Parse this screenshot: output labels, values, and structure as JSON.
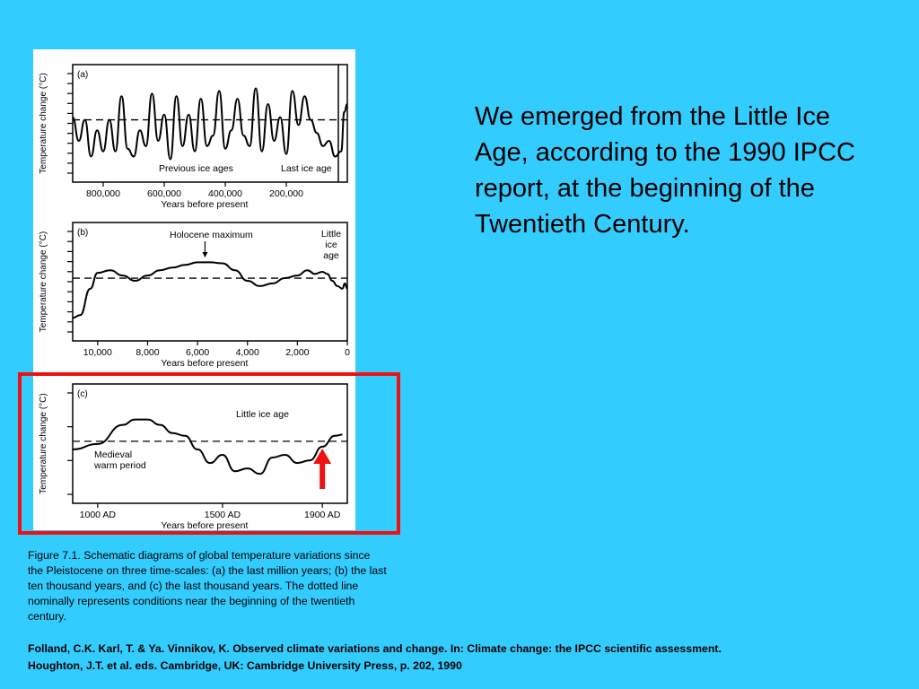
{
  "slide": {
    "background": "#33ccff",
    "highlight_color": "#ee1111",
    "arrow_color": "#ee1111",
    "side_text": "We emerged from the Little Ice Age, according to the 1990 IPCC report, at the beginning of the Twentieth Century.",
    "caption": "Figure 7.1. Schematic diagrams of global temperature variations since the Pleistocene on three time-scales: (a) the last million years; (b) the last ten thousand years, and (c) the last thousand years. The dotted line nominally represents conditions near the beginning of the twentieth century.",
    "citation_line1": "Folland, C.K. Karl, T. & Ya. Vinnikov, K. Observed climate variations and change. In: Climate change: the IPCC scientific assessment.",
    "citation_line2": "Houghton, J.T. et al. eds. Cambridge, UK: Cambridge University Press, p. 202, 1990"
  },
  "chart_data": [
    {
      "type": "line",
      "panel_label": "(a)",
      "ylabel": "Temperature change (°C)",
      "xlabel": "Years before present",
      "x_ticks": [
        "800,000",
        "600,000",
        "400,000",
        "200,000"
      ],
      "x_tick_values": [
        800000,
        600000,
        400000,
        200000
      ],
      "xlim": [
        900000,
        0
      ],
      "ylim": [
        -1,
        1
      ],
      "reference_line": 0,
      "annotations": [
        "Previous ice ages",
        "Last ice age"
      ],
      "x": [
        900000,
        880000,
        860000,
        840000,
        820000,
        800000,
        780000,
        760000,
        740000,
        720000,
        700000,
        680000,
        660000,
        640000,
        620000,
        600000,
        580000,
        560000,
        540000,
        520000,
        500000,
        480000,
        460000,
        440000,
        420000,
        400000,
        380000,
        360000,
        340000,
        320000,
        300000,
        280000,
        260000,
        240000,
        220000,
        200000,
        180000,
        160000,
        140000,
        120000,
        100000,
        80000,
        60000,
        40000,
        20000,
        10000,
        0
      ],
      "values": [
        0.05,
        -0.4,
        0.0,
        -0.7,
        -0.2,
        -0.6,
        0.0,
        -0.6,
        0.45,
        -0.55,
        -0.7,
        -0.2,
        -0.5,
        0.5,
        -0.4,
        0.1,
        -0.75,
        0.45,
        -0.5,
        0.1,
        -0.6,
        0.4,
        -0.5,
        -0.3,
        0.55,
        -0.55,
        -0.2,
        0.4,
        -0.3,
        -0.5,
        0.6,
        -0.6,
        0.3,
        -0.4,
        0.05,
        -0.65,
        0.55,
        -0.1,
        0.45,
        0.0,
        -0.25,
        -0.5,
        -0.4,
        -0.7,
        -0.6,
        0.15,
        0.3
      ]
    },
    {
      "type": "line",
      "panel_label": "(b)",
      "ylabel": "Temperature change (°C)",
      "xlabel": "Years before present",
      "x_ticks": [
        "10,000",
        "8,000",
        "6,000",
        "4,000",
        "2,000",
        "0"
      ],
      "x_tick_values": [
        10000,
        8000,
        6000,
        4000,
        2000,
        0
      ],
      "xlim": [
        11000,
        0
      ],
      "ylim": [
        -1,
        1
      ],
      "reference_line": 0,
      "annotations": [
        "Holocene maximum",
        "Little",
        "ice",
        "age"
      ],
      "x": [
        11000,
        10700,
        10300,
        10000,
        9500,
        9000,
        8500,
        8000,
        7500,
        7000,
        6500,
        6000,
        5500,
        5000,
        4500,
        4000,
        3500,
        3000,
        2500,
        2000,
        1600,
        1300,
        1000,
        800,
        600,
        400,
        200,
        100,
        0
      ],
      "values": [
        -0.75,
        -0.7,
        -0.2,
        0.1,
        0.15,
        0.05,
        -0.05,
        0.05,
        0.15,
        0.2,
        0.25,
        0.3,
        0.3,
        0.28,
        0.15,
        -0.05,
        -0.15,
        -0.1,
        0.0,
        0.05,
        0.15,
        0.08,
        0.12,
        0.08,
        -0.05,
        -0.15,
        -0.2,
        -0.1,
        -0.2
      ]
    },
    {
      "type": "line",
      "panel_label": "(c)",
      "ylabel": "Temperature change (°C)",
      "xlabel": "Years before present",
      "x_ticks": [
        "1000 AD",
        "1500 AD",
        "1900 AD"
      ],
      "x_tick_values": [
        1000,
        1500,
        1900
      ],
      "xlim": [
        900,
        2000
      ],
      "ylim": [
        -1,
        1
      ],
      "reference_line": 0,
      "annotations": [
        "Little ice age",
        "Medieval",
        "warm period"
      ],
      "x": [
        900,
        1000,
        1100,
        1150,
        1200,
        1250,
        1300,
        1350,
        1400,
        1450,
        1500,
        1550,
        1600,
        1650,
        1700,
        1750,
        1800,
        1850,
        1900,
        1950,
        1980
      ],
      "values": [
        -0.15,
        -0.05,
        0.3,
        0.4,
        0.4,
        0.3,
        0.15,
        0.1,
        -0.15,
        -0.4,
        -0.25,
        -0.55,
        -0.5,
        -0.6,
        -0.3,
        -0.25,
        -0.4,
        -0.35,
        -0.1,
        0.1,
        0.12
      ]
    }
  ]
}
